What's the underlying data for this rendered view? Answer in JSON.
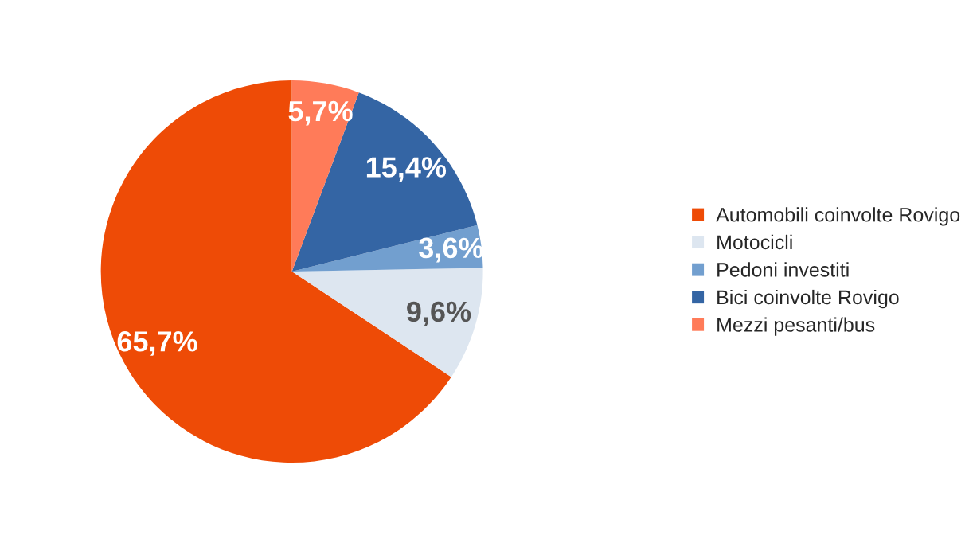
{
  "chart_data": {
    "type": "pie",
    "categories": [
      "Automobili coinvolte Rovigo",
      "Motocicli",
      "Pedoni investiti",
      "Bici coinvolte Rovigo",
      "Mezzi pesanti/bus"
    ],
    "values": [
      65.7,
      9.6,
      3.6,
      15.4,
      5.7
    ],
    "value_labels": [
      "65,7%",
      "9,6%",
      "3,6%",
      "15,4%",
      "5,7%"
    ],
    "colors": [
      "#ee4b06",
      "#dde6f0",
      "#729fcf",
      "#3465a4",
      "#ff7b59"
    ],
    "legend": "right"
  }
}
